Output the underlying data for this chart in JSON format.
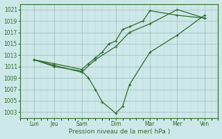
{
  "background_color": "#cde8e8",
  "grid_color_major": "#9bbaba",
  "grid_color_minor": "#b8d4d4",
  "line_color": "#2d6b2d",
  "marker_color": "#2d6b2d",
  "xlabel": "Pression niveau de la mer( hPa )",
  "ylim": [
    1002,
    1022
  ],
  "ytick_vals": [
    1003,
    1005,
    1007,
    1009,
    1011,
    1013,
    1015,
    1017,
    1019,
    1021
  ],
  "xlim": [
    0,
    14
  ],
  "xtick_major_pos": [
    1,
    2.5,
    4.5,
    7,
    9.5,
    11.5,
    13.5
  ],
  "xtick_major_labels": [
    "Lun",
    "Jeu",
    "Sam",
    "Dim",
    "Mar",
    "Mer",
    "Ven"
  ],
  "series": [
    {
      "x": [
        1,
        2.5,
        4.5,
        5.5,
        7,
        8,
        9.5,
        11.5,
        13.5
      ],
      "y": [
        1012.2,
        1011.2,
        1010.0,
        1012.2,
        1014.5,
        1017.0,
        1018.5,
        1021.0,
        1019.5
      ]
    },
    {
      "x": [
        1,
        2.5,
        4.5,
        5.0,
        5.5,
        6.0,
        7.0,
        7.5,
        8.0,
        9.5,
        11.5,
        13.5
      ],
      "y": [
        1012.2,
        1011.0,
        1010.2,
        1009.0,
        1007.0,
        1004.8,
        1002.8,
        1004.0,
        1007.8,
        1013.5,
        1016.5,
        1020.0
      ]
    },
    {
      "x": [
        1,
        2.5,
        4.5,
        5.0,
        5.5,
        6.0,
        6.5,
        7.0,
        7.5,
        8.0,
        9.0,
        9.5,
        11.5,
        13.5
      ],
      "y": [
        1012.2,
        1011.5,
        1010.5,
        1011.5,
        1012.5,
        1013.5,
        1015.0,
        1015.5,
        1017.5,
        1018.0,
        1019.0,
        1020.8,
        1020.0,
        1019.5
      ]
    }
  ]
}
